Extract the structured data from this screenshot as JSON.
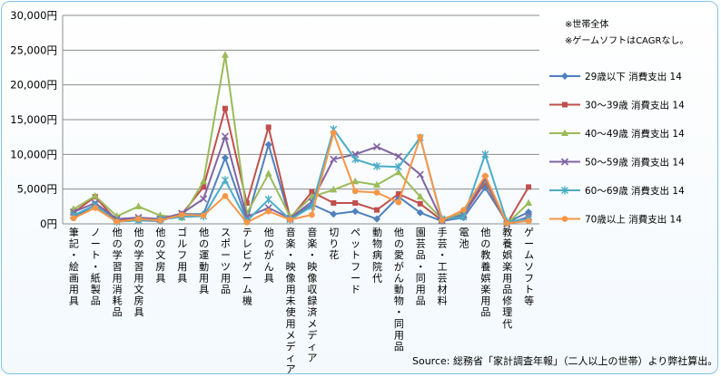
{
  "chart_data": {
    "type": "line",
    "ylim": [
      0,
      30000
    ],
    "ytick_values": [
      0,
      5000,
      10000,
      15000,
      20000,
      25000,
      30000
    ],
    "ytick_labels": [
      "0円",
      "5,000円",
      "10,000円",
      "15,000円",
      "20,000円",
      "25,000円",
      "30,000円"
    ],
    "categories": [
      "筆記・絵画用具",
      "ノート・紙製品",
      "他の学習用消耗品",
      "他の学習用文房具",
      "他の文房具",
      "ゴルフ用具",
      "他の運動用具",
      "スポーツ用品",
      "テレビゲーム機",
      "他のがん具",
      "音楽・映像用未使用メディア",
      "音楽・映像収録済メディア",
      "切り花",
      "ペットフード",
      "動物病院代",
      "他の愛がん動物・同用品",
      "園芸品・同用品",
      "手芸・工芸材料",
      "電池",
      "他の教養娯楽用品",
      "教養娯楽用品修理代",
      "ゲームソフト等"
    ],
    "series": [
      {
        "name": "29歳以下 消費支出 14",
        "color": "#4f81bd",
        "marker": "diamond",
        "values": [
          900,
          2700,
          400,
          500,
          400,
          1400,
          1400,
          9500,
          500,
          11400,
          600,
          2800,
          1400,
          1800,
          700,
          3900,
          1600,
          400,
          900,
          5200,
          200,
          1700
        ]
      },
      {
        "name": "30～39歳 消費支出 14",
        "color": "#c0504d",
        "marker": "square",
        "values": [
          1600,
          3900,
          400,
          800,
          700,
          1400,
          5300,
          16600,
          3000,
          13900,
          800,
          4600,
          3000,
          3000,
          2000,
          4300,
          2900,
          500,
          1300,
          6000,
          0,
          5300
        ]
      },
      {
        "name": "40～49歳 消費支出 14",
        "color": "#9bbb59",
        "marker": "triangle",
        "values": [
          2100,
          4000,
          1100,
          2500,
          1200,
          900,
          6100,
          24300,
          1500,
          7200,
          1000,
          3900,
          4900,
          6100,
          5600,
          7400,
          3900,
          700,
          1600,
          6300,
          0,
          3000
        ]
      },
      {
        "name": "50～59歳 消費支出 14",
        "color": "#8064a2",
        "marker": "x",
        "values": [
          1700,
          3000,
          700,
          900,
          700,
          1500,
          3600,
          12600,
          1000,
          2300,
          800,
          3200,
          9300,
          10000,
          11100,
          9700,
          7100,
          500,
          1300,
          6500,
          0,
          1000
        ]
      },
      {
        "name": "60～69歳 消費支出 14",
        "color": "#4bacc6",
        "marker": "star",
        "values": [
          1200,
          2700,
          300,
          500,
          600,
          1000,
          1100,
          6300,
          400,
          3500,
          600,
          2500,
          13600,
          9300,
          8300,
          8200,
          12400,
          700,
          1000,
          10000,
          300,
          700
        ]
      },
      {
        "name": "70歳以上 消費支出 14",
        "color": "#f79646",
        "marker": "circle",
        "values": [
          800,
          2300,
          300,
          700,
          500,
          1300,
          1200,
          4000,
          200,
          1800,
          600,
          1300,
          13100,
          4700,
          4500,
          3100,
          12500,
          500,
          2000,
          6900,
          100,
          400
        ]
      }
    ]
  },
  "notes": [
    "※世帯全体",
    "※ゲームソフトはCAGRなし。"
  ],
  "source": "Source: 総務省「家計調査年報」（二人以上の世帯）より弊社算出。"
}
